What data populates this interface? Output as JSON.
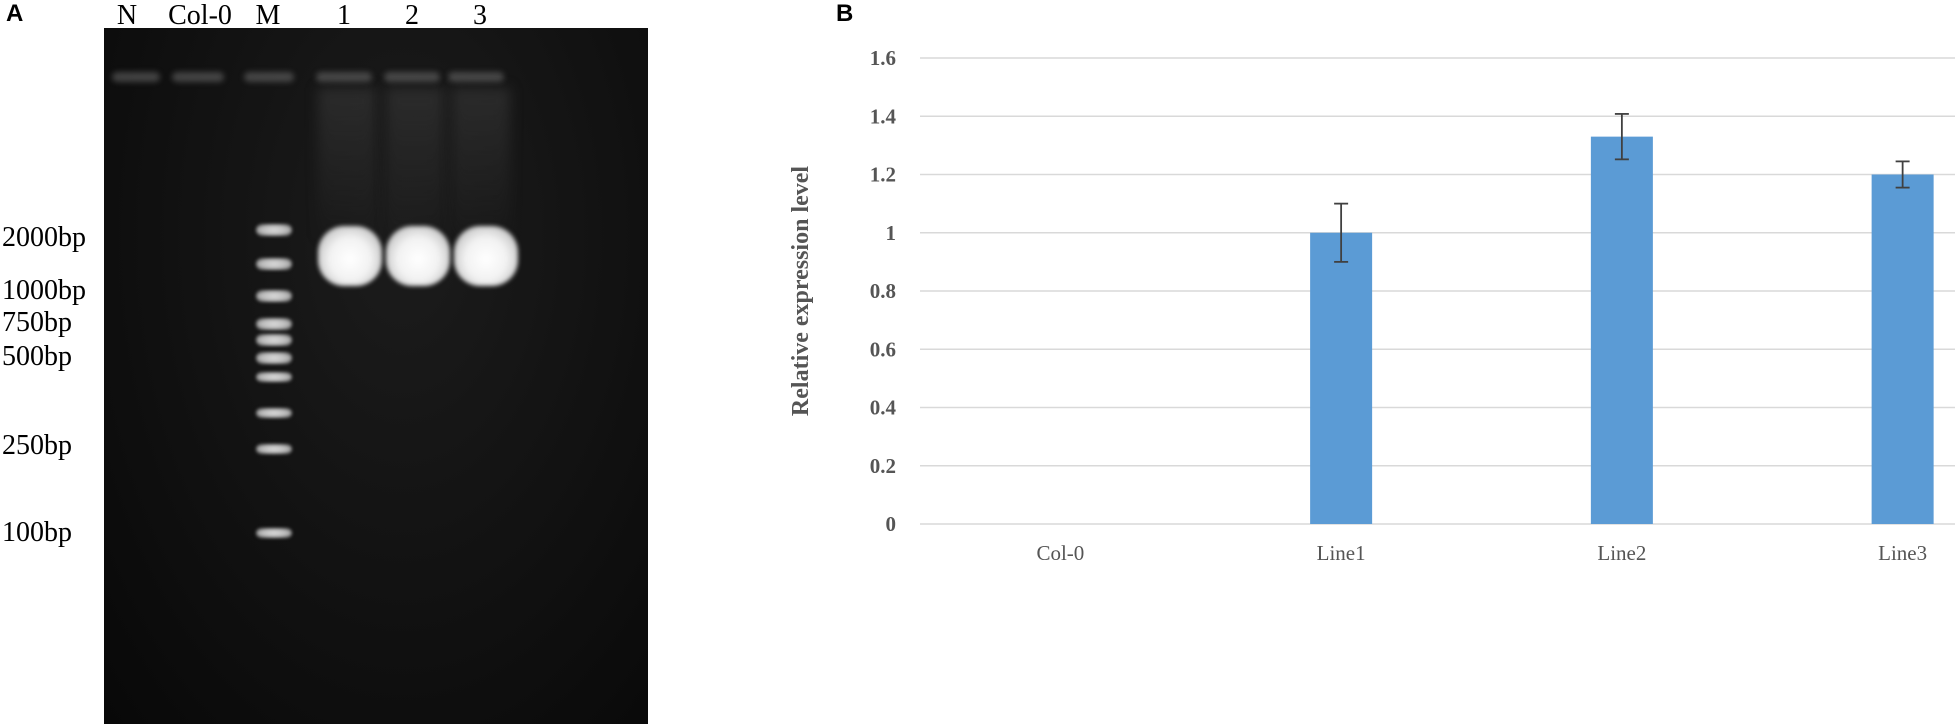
{
  "gel": {
    "panel_label": "A",
    "lanes": [
      "N",
      "Col-0",
      "M",
      "1",
      "2",
      "3"
    ],
    "marker_sizes": [
      "2000bp",
      "1000bp",
      "750bp",
      "500bp",
      "250bp",
      "100bp"
    ]
  },
  "chart_data": {
    "panel_label": "B",
    "type": "bar",
    "categories": [
      "Col-0",
      "Line1",
      "Line2",
      "Line3"
    ],
    "series": [
      {
        "values": [
          0,
          1.0,
          1.33,
          1.2
        ],
        "errors": [
          0,
          0.1,
          0.078,
          0.045
        ],
        "color": "#5b9bd5"
      }
    ],
    "ylabel": "Relative  expression  level",
    "ylim": [
      0,
      1.6
    ],
    "yticks": [
      "0",
      "0.2",
      "0.4",
      "0.6",
      "0.8",
      "1",
      "1.2",
      "1.4",
      "1.6"
    ],
    "grid": true,
    "gridColor": "#d9d9d9",
    "errorColor": "#404040"
  }
}
